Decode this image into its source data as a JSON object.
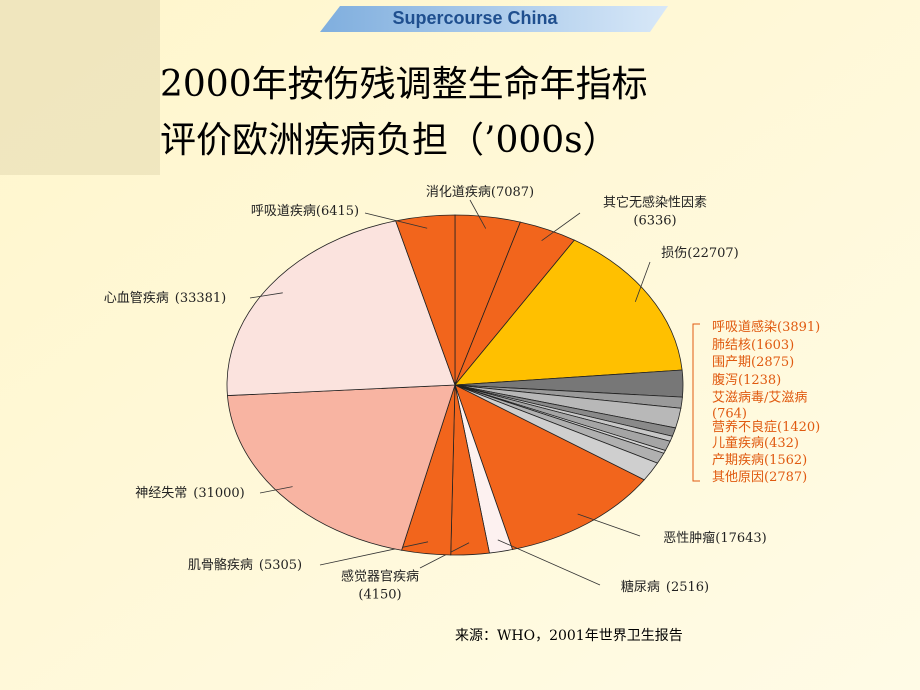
{
  "header": "Supercourse China",
  "chart_data": {
    "type": "pie",
    "title_lines": [
      "2000年按伤残调整生命年指标",
      "评价欧洲疾病负担（’000s）"
    ],
    "categories": [
      "消化道疾病",
      "其它无感染性因素",
      "损伤",
      "呼吸道感染",
      "肺结核",
      "围产期",
      "腹泻",
      "艾滋病毒/艾滋病",
      "营养不良症",
      "儿童疾病",
      "产期疾病",
      "其他原因",
      "恶性肿瘤",
      "糖尿病",
      "感觉器官疾病",
      "肌骨骼疾病",
      "神经失常",
      "心血管疾病",
      "呼吸道疾病"
    ],
    "values": [
      7087,
      6336,
      22707,
      3891,
      1603,
      2875,
      1238,
      764,
      1420,
      432,
      1562,
      2787,
      17643,
      2516,
      4150,
      5305,
      31000,
      33381,
      6415
    ],
    "value_labels": [
      "(7087)",
      "(6336)",
      "(22707)",
      "(3891)",
      "(1603)",
      "(2875)",
      "(1238)",
      "(764)",
      "(1420)",
      "(432)",
      "(1562)",
      "(2787)",
      "(17643)",
      "(2516)",
      "(4150)",
      "(5305)",
      "(31000)",
      "(33381)",
      "(6415)"
    ],
    "colors": [
      "#f2651c",
      "#f2651c",
      "#ffc000",
      "#777777",
      "#9a9a9a",
      "#b8b8b8",
      "#8a8a8a",
      "#c8c8c8",
      "#a5a5a5",
      "#d4d4d4",
      "#b0b0b0",
      "#cfcfcf",
      "#f2651c",
      "#fdf1f0",
      "#f2651c",
      "#f2651c",
      "#f8b4a2",
      "#fbe3de",
      "#f2651c"
    ],
    "source": "来源：WHO，2001年世界卫生报告"
  }
}
